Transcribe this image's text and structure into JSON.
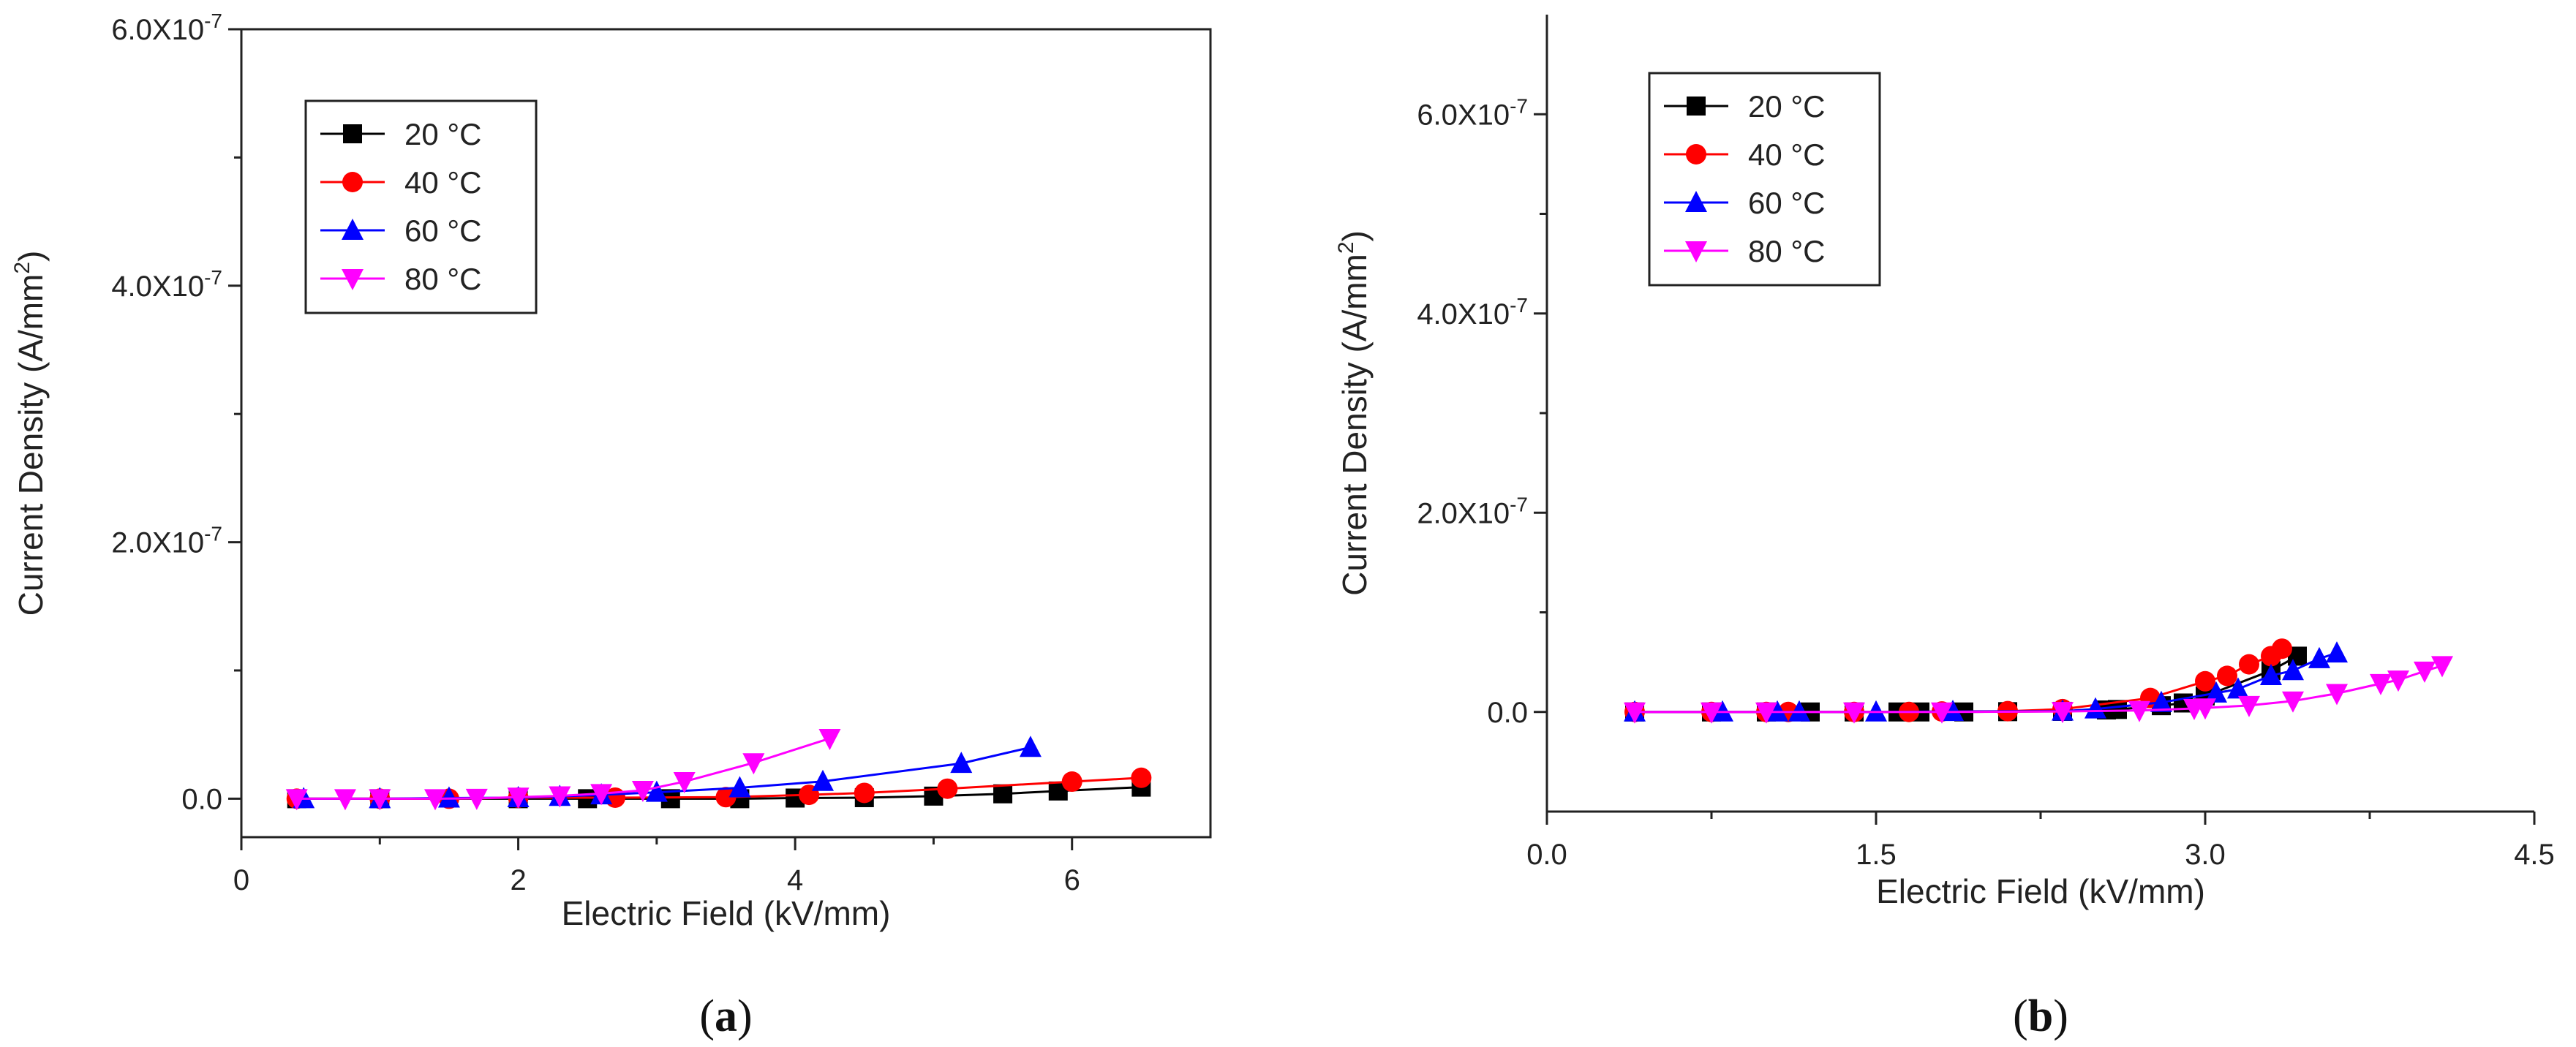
{
  "chart_data": [
    {
      "type": "line",
      "caption": "a",
      "xlabel": "Electric Field (kV/mm)",
      "ylabel": "Current Density (A/mm2)",
      "ylabel_superscript": "2",
      "xlim": [
        0,
        7
      ],
      "ylim": [
        -3e-08,
        6e-07
      ],
      "xticks": [
        0,
        2,
        4,
        6
      ],
      "xtick_labels": [
        "0",
        "2",
        "4",
        "6"
      ],
      "yticks": [
        0,
        2e-07,
        4e-07,
        6e-07
      ],
      "ytick_labels": [
        "0.0",
        "2.0X10-7",
        "4.0X10-7",
        "6.0X10-7"
      ],
      "grid": false,
      "legend_position": "top-left",
      "series": [
        {
          "name": "20 °C",
          "color": "#000000",
          "marker": "square",
          "x": [
            0.4,
            1.0,
            2.0,
            2.5,
            3.1,
            3.6,
            4.0,
            4.5,
            5.0,
            5.5,
            5.9,
            6.5
          ],
          "y": [
            0.0,
            0.0,
            0.0,
            0.0,
            0.0,
            0.0,
            5e-10,
            8e-10,
            2e-09,
            3.8e-09,
            6e-09,
            9e-09
          ]
        },
        {
          "name": "40 °C",
          "color": "#ff0000",
          "marker": "circle",
          "x": [
            0.4,
            1.0,
            1.5,
            2.0,
            2.7,
            3.5,
            4.1,
            4.5,
            5.1,
            6.0,
            6.5
          ],
          "y": [
            0.0,
            0.0,
            0.0,
            8e-10,
            8e-10,
            1.2e-09,
            3e-09,
            4.5e-09,
            7.8e-09,
            1.33e-08,
            1.63e-08
          ]
        },
        {
          "name": "60 °C",
          "color": "#0000ff",
          "marker": "triangle-up",
          "x": [
            0.45,
            1.0,
            1.5,
            2.0,
            2.3,
            2.6,
            3.0,
            3.6,
            4.2,
            5.2,
            5.7
          ],
          "y": [
            0.0,
            0.0,
            5e-10,
            8e-10,
            1.8e-09,
            3e-09,
            5e-09,
            8.5e-09,
            1.35e-08,
            2.75e-08,
            4e-08
          ]
        },
        {
          "name": "80 °C",
          "color": "#ff00ff",
          "marker": "triangle-down",
          "x": [
            0.4,
            0.75,
            1.0,
            1.4,
            1.7,
            2.0,
            2.3,
            2.6,
            2.9,
            3.2,
            3.7,
            4.25
          ],
          "y": [
            0.0,
            0.0,
            0.0,
            0.0,
            3e-10,
            1.2e-09,
            2.2e-09,
            4e-09,
            6.5e-09,
            1.33e-08,
            2.8e-08,
            4.7e-08
          ]
        }
      ]
    },
    {
      "type": "line",
      "caption": "b",
      "xlabel": "Electric Field (kV/mm)",
      "ylabel": "Current Density (A/mm2)",
      "ylabel_superscript": "2",
      "xlim": [
        0,
        4.5
      ],
      "ylim": [
        -1e-07,
        7e-07
      ],
      "xticks": [
        0,
        1.5,
        3.0,
        4.5
      ],
      "xtick_labels": [
        "0.0",
        "1.5",
        "3.0",
        "4.5"
      ],
      "yticks": [
        0,
        2e-07,
        4e-07,
        6e-07
      ],
      "ytick_labels": [
        "0.0",
        "2.0X10-7",
        "4.0X10-7",
        "6.0X10-7"
      ],
      "grid": false,
      "legend_position": "top-left",
      "series": [
        {
          "name": "20 °C",
          "color": "#000000",
          "marker": "square",
          "x": [
            0.4,
            0.75,
            1.0,
            1.2,
            1.4,
            1.6,
            1.7,
            1.9,
            2.1,
            2.35,
            2.55,
            2.6,
            2.8,
            2.9,
            3.0,
            3.3,
            3.42
          ],
          "y": [
            0.0,
            0.0,
            0.0,
            0.0,
            0.0,
            0.0,
            0.0,
            0.0,
            3e-10,
            6e-10,
            2e-09,
            2.5e-09,
            6.3e-09,
            9e-09,
            1.6e-08,
            4.15e-08,
            5.6e-08
          ]
        },
        {
          "name": "40 °C",
          "color": "#ff0000",
          "marker": "circle",
          "x": [
            0.4,
            0.75,
            1.0,
            1.1,
            1.4,
            1.65,
            1.8,
            2.1,
            2.35,
            2.75,
            3.0,
            3.1,
            3.2,
            3.3,
            3.35
          ],
          "y": [
            0.0,
            0.0,
            0.0,
            0.0,
            0.0,
            0.0,
            5e-10,
            8e-10,
            2.8e-09,
            1.4e-08,
            3.08e-08,
            3.62e-08,
            4.78e-08,
            5.6e-08,
            6.35e-08
          ]
        },
        {
          "name": "60 °C",
          "color": "#0000ff",
          "marker": "triangle-up",
          "x": [
            0.4,
            0.8,
            1.05,
            1.15,
            1.5,
            1.85,
            2.35,
            2.5,
            2.8,
            3.05,
            3.15,
            3.3,
            3.4,
            3.52,
            3.6
          ],
          "y": [
            0.0,
            0.0,
            0.0,
            0.0,
            0.0,
            5e-10,
            8e-10,
            3e-09,
            9.5e-09,
            1.9e-08,
            2.3e-08,
            3.65e-08,
            4.15e-08,
            5.35e-08,
            5.92e-08
          ]
        },
        {
          "name": "80 °C",
          "color": "#ff00ff",
          "marker": "triangle-down",
          "x": [
            0.4,
            0.75,
            1.0,
            1.4,
            1.8,
            2.35,
            2.7,
            2.95,
            3.0,
            3.2,
            3.4,
            3.6,
            3.8,
            3.88,
            4.0,
            4.08
          ],
          "y": [
            0.0,
            0.0,
            0.0,
            0.0,
            0.0,
            5e-10,
            1.5e-09,
            3.5e-09,
            4e-09,
            6.5e-09,
            1.1e-08,
            1.85e-08,
            2.85e-08,
            3.2e-08,
            4.1e-08,
            4.65e-08
          ]
        }
      ]
    }
  ]
}
